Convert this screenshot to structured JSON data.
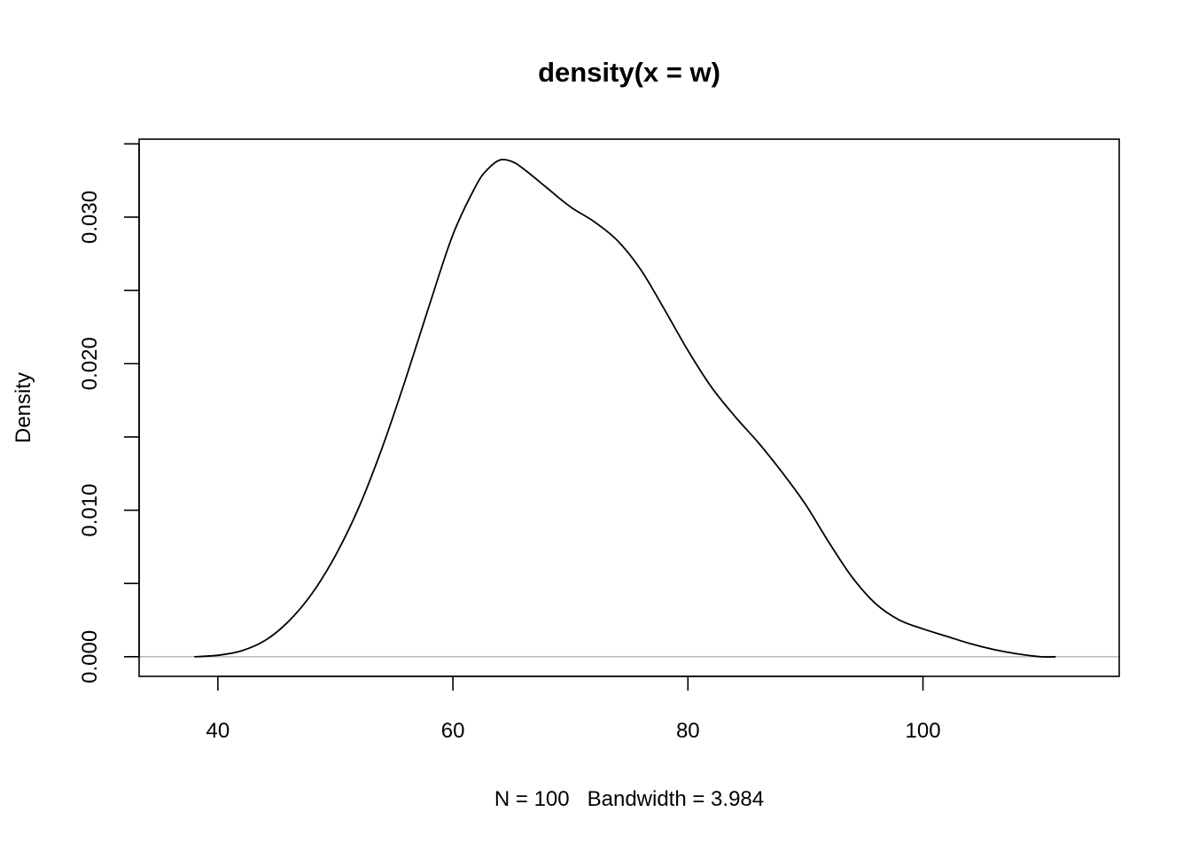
{
  "chart_data": {
    "type": "line",
    "title": "density(x = w)",
    "xlabel": "N = 100   Bandwidth = 3.984",
    "ylabel": "Density",
    "xlim": [
      33.3,
      116.7
    ],
    "ylim": [
      -0.00134,
      0.03532
    ],
    "x_ticks": [
      40,
      60,
      80,
      100
    ],
    "x_tick_labels": [
      "40",
      "60",
      "80",
      "100"
    ],
    "y_ticks": [
      0.0,
      0.005,
      0.01,
      0.015,
      0.02,
      0.025,
      0.03,
      0.035
    ],
    "y_tick_labels": [
      "0.000",
      "",
      "0.010",
      "",
      "0.020",
      "",
      "0.030",
      ""
    ],
    "grid": false,
    "baseline": {
      "y": 0,
      "color": "#bebebe"
    },
    "line_color": "#000000",
    "series": [
      {
        "x": [
          38.0,
          40.0,
          42.0,
          44.0,
          46.0,
          48.0,
          50.0,
          52.0,
          54.0,
          56.0,
          58.0,
          60.0,
          62.0,
          63.0,
          64.0,
          65.0,
          66.0,
          68.0,
          70.0,
          72.0,
          74.0,
          76.0,
          78.0,
          80.0,
          82.0,
          84.0,
          86.0,
          88.0,
          90.0,
          92.0,
          94.0,
          96.0,
          98.0,
          100.0,
          102.0,
          104.0,
          106.0,
          108.0,
          110.0,
          111.3
        ],
        "y": [
          0.0,
          0.0001,
          0.0004,
          0.0011,
          0.0024,
          0.0043,
          0.0069,
          0.0102,
          0.0143,
          0.019,
          0.024,
          0.0288,
          0.0322,
          0.0333,
          0.0339,
          0.0338,
          0.0333,
          0.032,
          0.0307,
          0.0297,
          0.0284,
          0.0264,
          0.0237,
          0.0209,
          0.0184,
          0.0164,
          0.0146,
          0.0126,
          0.0104,
          0.0078,
          0.0054,
          0.0036,
          0.0025,
          0.0019,
          0.0014,
          0.0009,
          0.0005,
          0.0002,
          0.0,
          0.0
        ]
      }
    ]
  }
}
